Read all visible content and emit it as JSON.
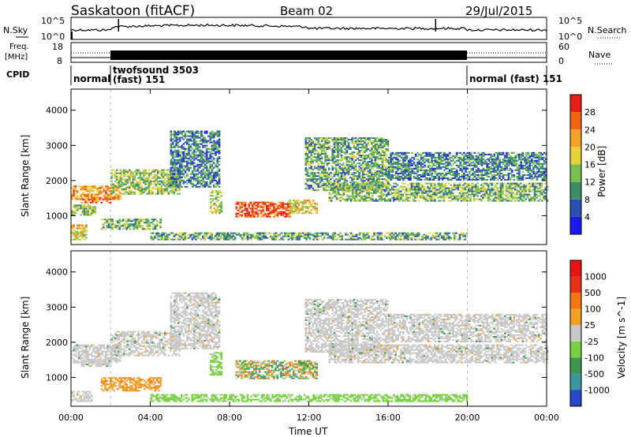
{
  "header": {
    "title": "Saskatoon (fitACF)",
    "beam": "Beam 02",
    "date": "29/Jul/2015"
  },
  "sky_panel": {
    "left_label": "N.Sky",
    "right_label": "N.Search",
    "left_ticks": [
      "10^5",
      "10^0"
    ],
    "right_ticks": [
      "10^5",
      "10^0"
    ]
  },
  "freq_panel": {
    "left_label_1": "Freq.",
    "left_label_2": "[MHz]",
    "right_label": "Nave",
    "left_ticks": [
      "18",
      "8"
    ],
    "right_ticks": [
      "60",
      "0"
    ]
  },
  "cpid": {
    "label": "CPID",
    "segments": [
      {
        "line1": "normal",
        "line2": "",
        "start_hour": 0,
        "end_hour": 2
      },
      {
        "line1": "twofsound 3503",
        "line2": "(fast) 151",
        "start_hour": 2,
        "end_hour": 20
      },
      {
        "line1": "normal (fast) 151",
        "line2": "",
        "start_hour": 20,
        "end_hour": 24
      }
    ]
  },
  "x_axis": {
    "label": "Time UT",
    "ticks": [
      "00:00",
      "04:00",
      "08:00",
      "12:00",
      "16:00",
      "20:00",
      "00:00"
    ]
  },
  "chart_data": [
    {
      "type": "heatmap",
      "name": "power",
      "ylabel": "Slant Range [km]",
      "xlim": [
        0,
        24
      ],
      "ylim": [
        180,
        4600
      ],
      "yticks": [
        1000,
        2000,
        3000,
        4000
      ],
      "colorbar": {
        "label": "Power [dB]",
        "ticks": [
          "4",
          "8",
          "12",
          "16",
          "20",
          "24",
          "28"
        ],
        "colors": [
          "#1a1af0",
          "#2850b4",
          "#3c8c64",
          "#78c050",
          "#e6d23c",
          "#f5a028",
          "#f06414",
          "#e61e14"
        ]
      },
      "bands": [
        {
          "t0": 0,
          "t1": 2.5,
          "r0": 1450,
          "r1": 1850,
          "level": 0.72
        },
        {
          "t0": 0.5,
          "t1": 2.0,
          "r0": 1350,
          "r1": 1500,
          "level": 0.85
        },
        {
          "t0": 0,
          "t1": 1.2,
          "r0": 1000,
          "r1": 1300,
          "level": 0.45
        },
        {
          "t0": 0,
          "t1": 0.8,
          "r0": 300,
          "r1": 750,
          "level": 0.6
        },
        {
          "t0": 1.5,
          "t1": 4.5,
          "r0": 600,
          "r1": 900,
          "level": 0.4
        },
        {
          "t0": 2,
          "t1": 5.5,
          "r0": 1600,
          "r1": 2300,
          "level": 0.45
        },
        {
          "t0": 5,
          "t1": 7.5,
          "r0": 1800,
          "r1": 3400,
          "level": 0.25
        },
        {
          "t0": 7.0,
          "t1": 7.6,
          "r0": 1050,
          "r1": 1700,
          "level": 0.5
        },
        {
          "t0": 8.3,
          "t1": 11.0,
          "r0": 950,
          "r1": 1400,
          "level": 0.92
        },
        {
          "t0": 11.0,
          "t1": 12.4,
          "r0": 1050,
          "r1": 1450,
          "level": 0.6
        },
        {
          "t0": 11.8,
          "t1": 16,
          "r0": 1700,
          "r1": 3200,
          "level": 0.35
        },
        {
          "t0": 13,
          "t1": 24,
          "r0": 1400,
          "r1": 1900,
          "level": 0.4
        },
        {
          "t0": 16,
          "t1": 24,
          "r0": 2000,
          "r1": 2800,
          "level": 0.25
        },
        {
          "t0": 4,
          "t1": 20,
          "r0": 300,
          "r1": 500,
          "level": 0.35
        }
      ]
    },
    {
      "type": "heatmap",
      "name": "velocity",
      "ylabel": "Slant Range [km]",
      "xlim": [
        0,
        24
      ],
      "ylim": [
        180,
        4600
      ],
      "yticks": [
        1000,
        2000,
        3000,
        4000
      ],
      "colorbar": {
        "label": "Velocity [m s^-1]",
        "ticks": [
          "1000",
          "500",
          "100",
          "25",
          "-25",
          "-100",
          "-500",
          "-1000"
        ],
        "colors": [
          "#2846c8",
          "#3c96a0",
          "#3c9650",
          "#78d240",
          "#c8c8c8",
          "#f0a028",
          "#f07814",
          "#e63214",
          "#e61414"
        ]
      },
      "bands": [
        {
          "t0": 0,
          "t1": 2.5,
          "r0": 1400,
          "r1": 1900,
          "level": "gray"
        },
        {
          "t0": 0.5,
          "t1": 2.0,
          "r0": 1300,
          "r1": 1500,
          "level": "gray"
        },
        {
          "t0": 1.5,
          "t1": 4.5,
          "r0": 600,
          "r1": 1000,
          "level": "orange"
        },
        {
          "t0": 0,
          "t1": 1,
          "r0": 300,
          "r1": 600,
          "level": "gray"
        },
        {
          "t0": 2,
          "t1": 5.5,
          "r0": 1600,
          "r1": 2300,
          "level": "gray"
        },
        {
          "t0": 5,
          "t1": 7.5,
          "r0": 1800,
          "r1": 3400,
          "level": "gray"
        },
        {
          "t0": 7.0,
          "t1": 7.6,
          "r0": 1050,
          "r1": 1700,
          "level": "green"
        },
        {
          "t0": 8.3,
          "t1": 12.4,
          "r0": 950,
          "r1": 1450,
          "level": "mixed"
        },
        {
          "t0": 11.8,
          "t1": 16,
          "r0": 1700,
          "r1": 3200,
          "level": "gray"
        },
        {
          "t0": 13,
          "t1": 24,
          "r0": 1400,
          "r1": 1900,
          "level": "gray"
        },
        {
          "t0": 16,
          "t1": 24,
          "r0": 2000,
          "r1": 2800,
          "level": "gray"
        },
        {
          "t0": 4,
          "t1": 20,
          "r0": 300,
          "r1": 500,
          "level": "green"
        }
      ]
    }
  ]
}
